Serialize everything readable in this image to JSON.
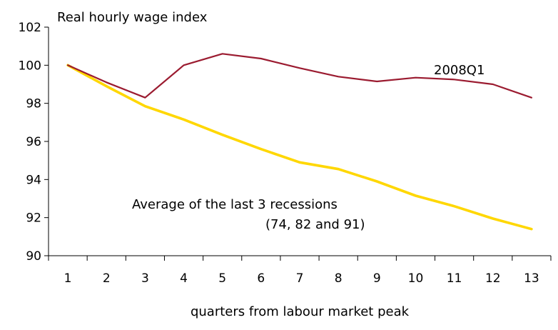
{
  "chart_data": {
    "type": "line",
    "ylabel": "Real hourly wage index",
    "xlabel": "quarters from labour market peak",
    "x": [
      1,
      2,
      3,
      4,
      5,
      6,
      7,
      8,
      9,
      10,
      11,
      12,
      13
    ],
    "ylim": [
      90,
      102
    ],
    "yticks": [
      90,
      92,
      94,
      96,
      98,
      100,
      102
    ],
    "grid": false,
    "series": [
      {
        "name": "2008Q1",
        "color": "#9B1B30",
        "values": [
          100.0,
          99.1,
          98.3,
          100.0,
          100.6,
          100.35,
          99.85,
          99.4,
          99.15,
          99.35,
          99.25,
          99.0,
          98.3
        ]
      },
      {
        "name": "Average of the last 3 recessions",
        "name_line2": "(74, 82 and 91)",
        "color": "#FFD700",
        "values": [
          100.0,
          98.9,
          97.85,
          97.15,
          96.35,
          95.6,
          94.9,
          94.55,
          93.9,
          93.15,
          92.6,
          91.95,
          91.4
        ]
      }
    ]
  }
}
